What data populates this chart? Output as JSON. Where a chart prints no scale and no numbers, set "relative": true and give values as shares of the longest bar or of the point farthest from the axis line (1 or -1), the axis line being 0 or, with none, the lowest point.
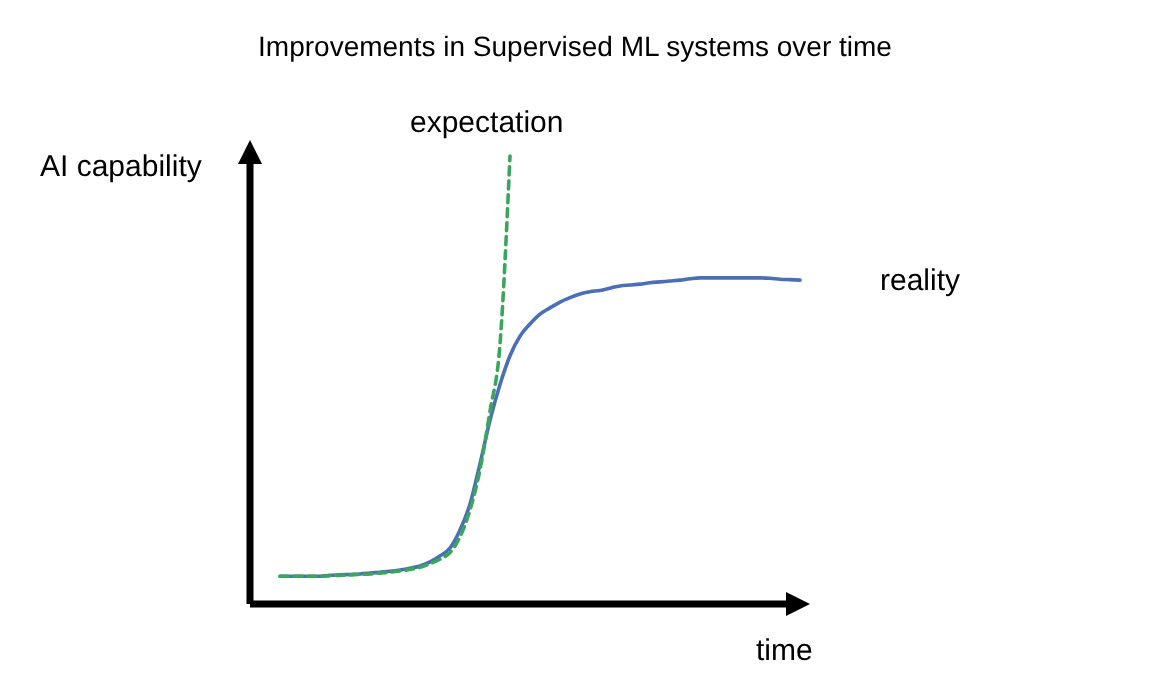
{
  "chart_data": {
    "type": "line",
    "title": "Improvements in Supervised ML systems over time",
    "xlabel": "time",
    "ylabel": "AI capability",
    "relative": true,
    "categories": [
      null,
      null,
      null,
      null,
      null,
      null,
      null,
      null,
      null,
      null,
      null,
      null,
      null,
      null,
      null,
      null,
      null,
      null,
      null,
      null,
      null,
      null,
      null,
      null,
      null,
      null,
      null,
      null,
      null,
      null,
      null,
      null,
      null,
      null,
      null,
      null,
      null,
      null,
      null,
      null,
      null,
      null,
      null,
      null,
      null,
      null,
      null,
      null,
      null,
      null,
      null,
      null,
      null
    ],
    "series": [
      {
        "name": "reality",
        "color": "#4a6fb5",
        "line_style": "solid",
        "values": [
          0.062,
          0.062,
          0.062,
          0.062,
          0.062,
          0.064,
          0.065,
          0.066,
          0.067,
          0.069,
          0.071,
          0.073,
          0.076,
          0.08,
          0.085,
          0.094,
          0.107,
          0.125,
          0.165,
          0.223,
          0.313,
          0.41,
          0.49,
          0.554,
          0.598,
          0.625,
          0.647,
          0.661,
          0.674,
          0.684,
          0.692,
          0.697,
          0.7,
          0.705,
          0.71,
          0.712,
          0.714,
          0.717,
          0.719,
          0.721,
          0.723,
          0.726,
          0.728,
          0.728,
          0.728,
          0.728,
          0.728,
          0.728,
          0.728,
          0.727,
          0.725,
          0.724,
          0.723
        ]
      },
      {
        "name": "expectation",
        "color": "#3aa55c",
        "line_style": "dashed",
        "values": [
          0.062,
          0.062,
          0.062,
          0.062,
          0.062,
          0.063,
          0.064,
          0.065,
          0.066,
          0.067,
          0.069,
          0.071,
          0.074,
          0.077,
          0.082,
          0.09,
          0.1,
          0.115,
          0.15,
          0.21,
          0.3,
          0.43,
          0.58,
          1.0,
          null,
          null,
          null,
          null,
          null,
          null,
          null,
          null,
          null,
          null,
          null,
          null,
          null,
          null,
          null,
          null,
          null,
          null,
          null,
          null,
          null,
          null,
          null,
          null,
          null,
          null,
          null,
          null,
          null
        ]
      }
    ]
  }
}
